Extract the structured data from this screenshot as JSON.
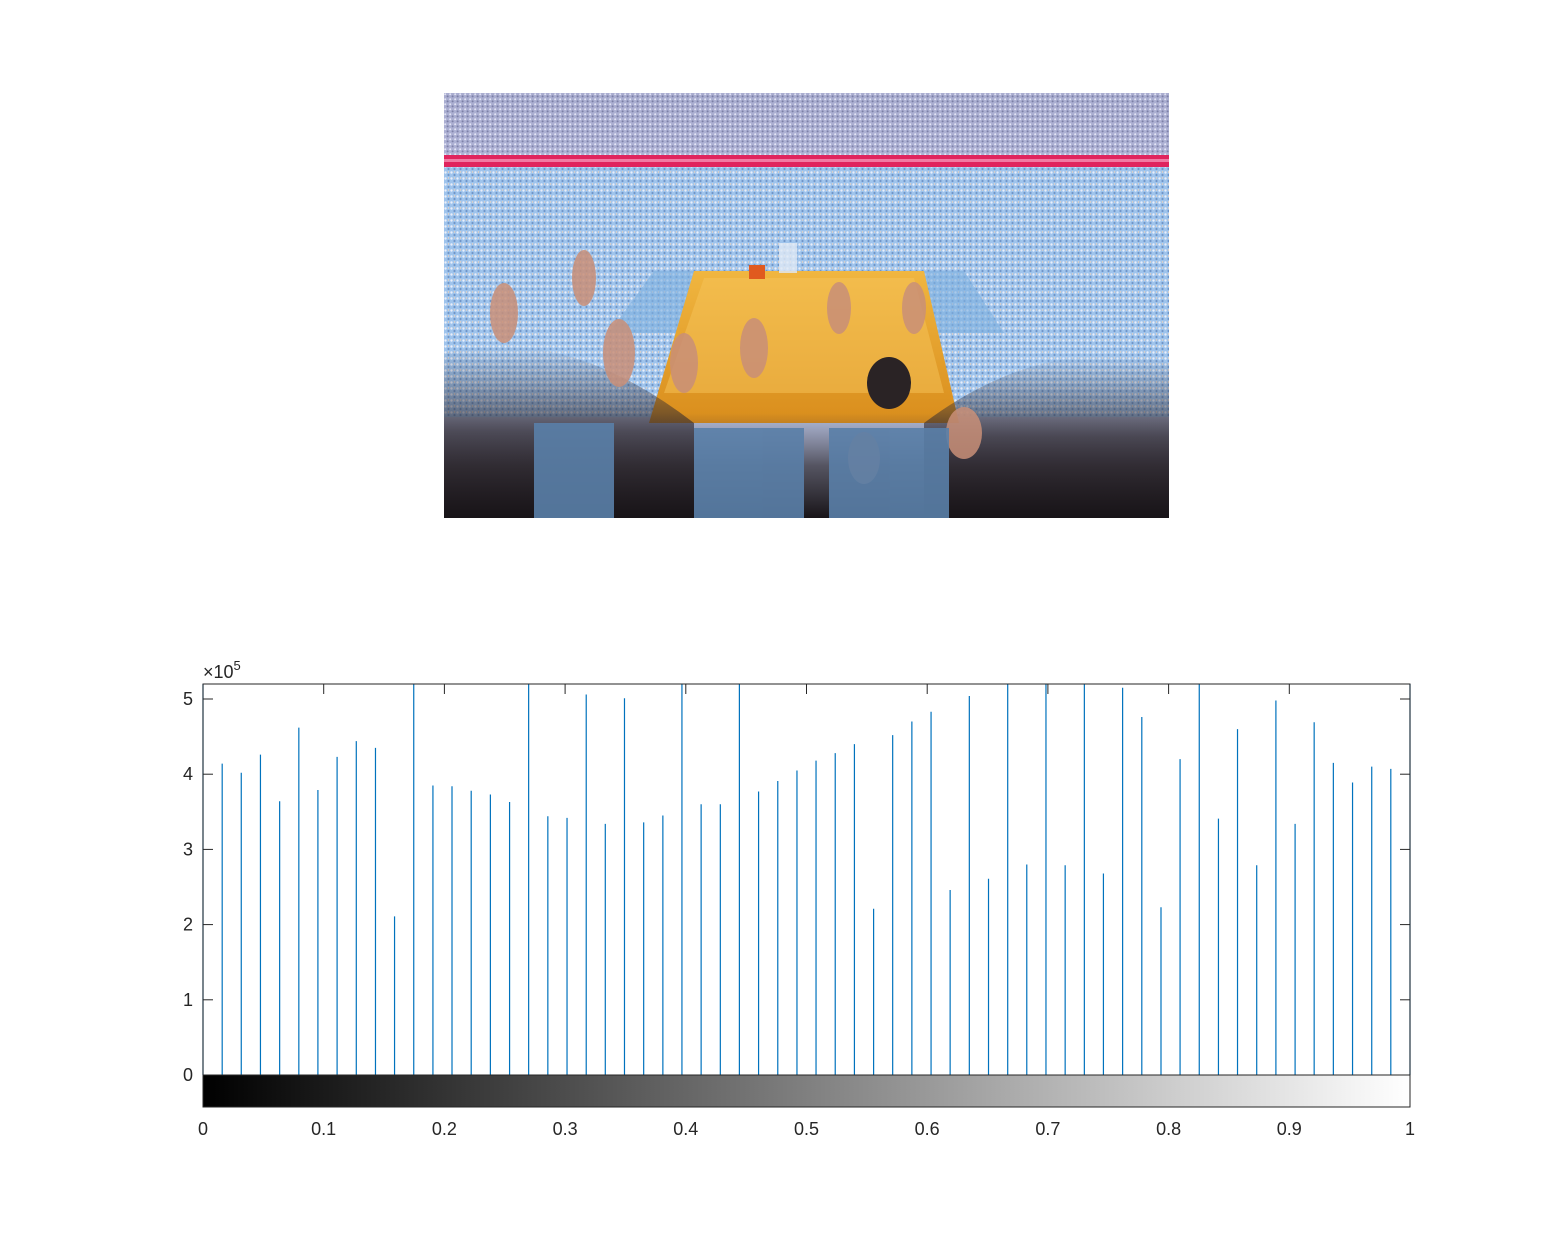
{
  "image_panel": {
    "description": "photo of basketball arena crowd with raised hands",
    "colors": {
      "seats": "#8fb9e2",
      "court": "#e8a52a",
      "banner": "#e0245e",
      "shadow": "#1e1a1e"
    }
  },
  "chart_data": {
    "type": "bar",
    "style": "stem",
    "title": "",
    "xlabel": "",
    "ylabel": "",
    "xlim": [
      0,
      1
    ],
    "ylim": [
      -45000,
      522000
    ],
    "y_exponent_label": "×10",
    "y_exponent_power": "5",
    "xticks": [
      "0",
      "0.1",
      "0.2",
      "0.3",
      "0.4",
      "0.5",
      "0.6",
      "0.7",
      "0.8",
      "0.9",
      "1"
    ],
    "yticks": [
      "0",
      "1",
      "2",
      "3",
      "4",
      "5"
    ],
    "colorbar": {
      "colormap": "gray",
      "range": [
        0,
        1
      ]
    },
    "grid": false,
    "series": [
      {
        "color": "#0072bd",
        "x": [
          0.0,
          0.0159,
          0.0317,
          0.0476,
          0.0635,
          0.0794,
          0.0952,
          0.1111,
          0.127,
          0.1429,
          0.1587,
          0.1746,
          0.1905,
          0.2063,
          0.2222,
          0.2381,
          0.254,
          0.2698,
          0.2857,
          0.3016,
          0.3175,
          0.3333,
          0.3492,
          0.3651,
          0.381,
          0.3968,
          0.4127,
          0.4286,
          0.4444,
          0.4603,
          0.4762,
          0.4921,
          0.5079,
          0.5238,
          0.5397,
          0.5556,
          0.5714,
          0.5873,
          0.6032,
          0.619,
          0.6349,
          0.6508,
          0.6667,
          0.6825,
          0.6984,
          0.7143,
          0.7302,
          0.746,
          0.7619,
          0.7778,
          0.7937,
          0.8095,
          0.8254,
          0.8413,
          0.8571,
          0.873,
          0.8889,
          0.9048,
          0.9206,
          0.9365,
          0.9524,
          0.9683,
          0.9841,
          1.0
        ],
        "values": [
          522000,
          414000,
          402000,
          426000,
          364000,
          462000,
          379000,
          423000,
          444000,
          435000,
          211000,
          522000,
          385000,
          384000,
          378000,
          373000,
          363000,
          522000,
          344000,
          342000,
          506000,
          334000,
          501000,
          336000,
          345000,
          522000,
          360000,
          360000,
          522000,
          377000,
          391000,
          405000,
          418000,
          428000,
          440000,
          221000,
          452000,
          470000,
          483000,
          246000,
          504000,
          261000,
          522000,
          280000,
          522000,
          279000,
          522000,
          268000,
          515000,
          476000,
          223000,
          420000,
          522000,
          341000,
          460000,
          279000,
          498000,
          334000,
          469000,
          415000,
          389000,
          410000,
          407000,
          522000
        ]
      }
    ]
  }
}
